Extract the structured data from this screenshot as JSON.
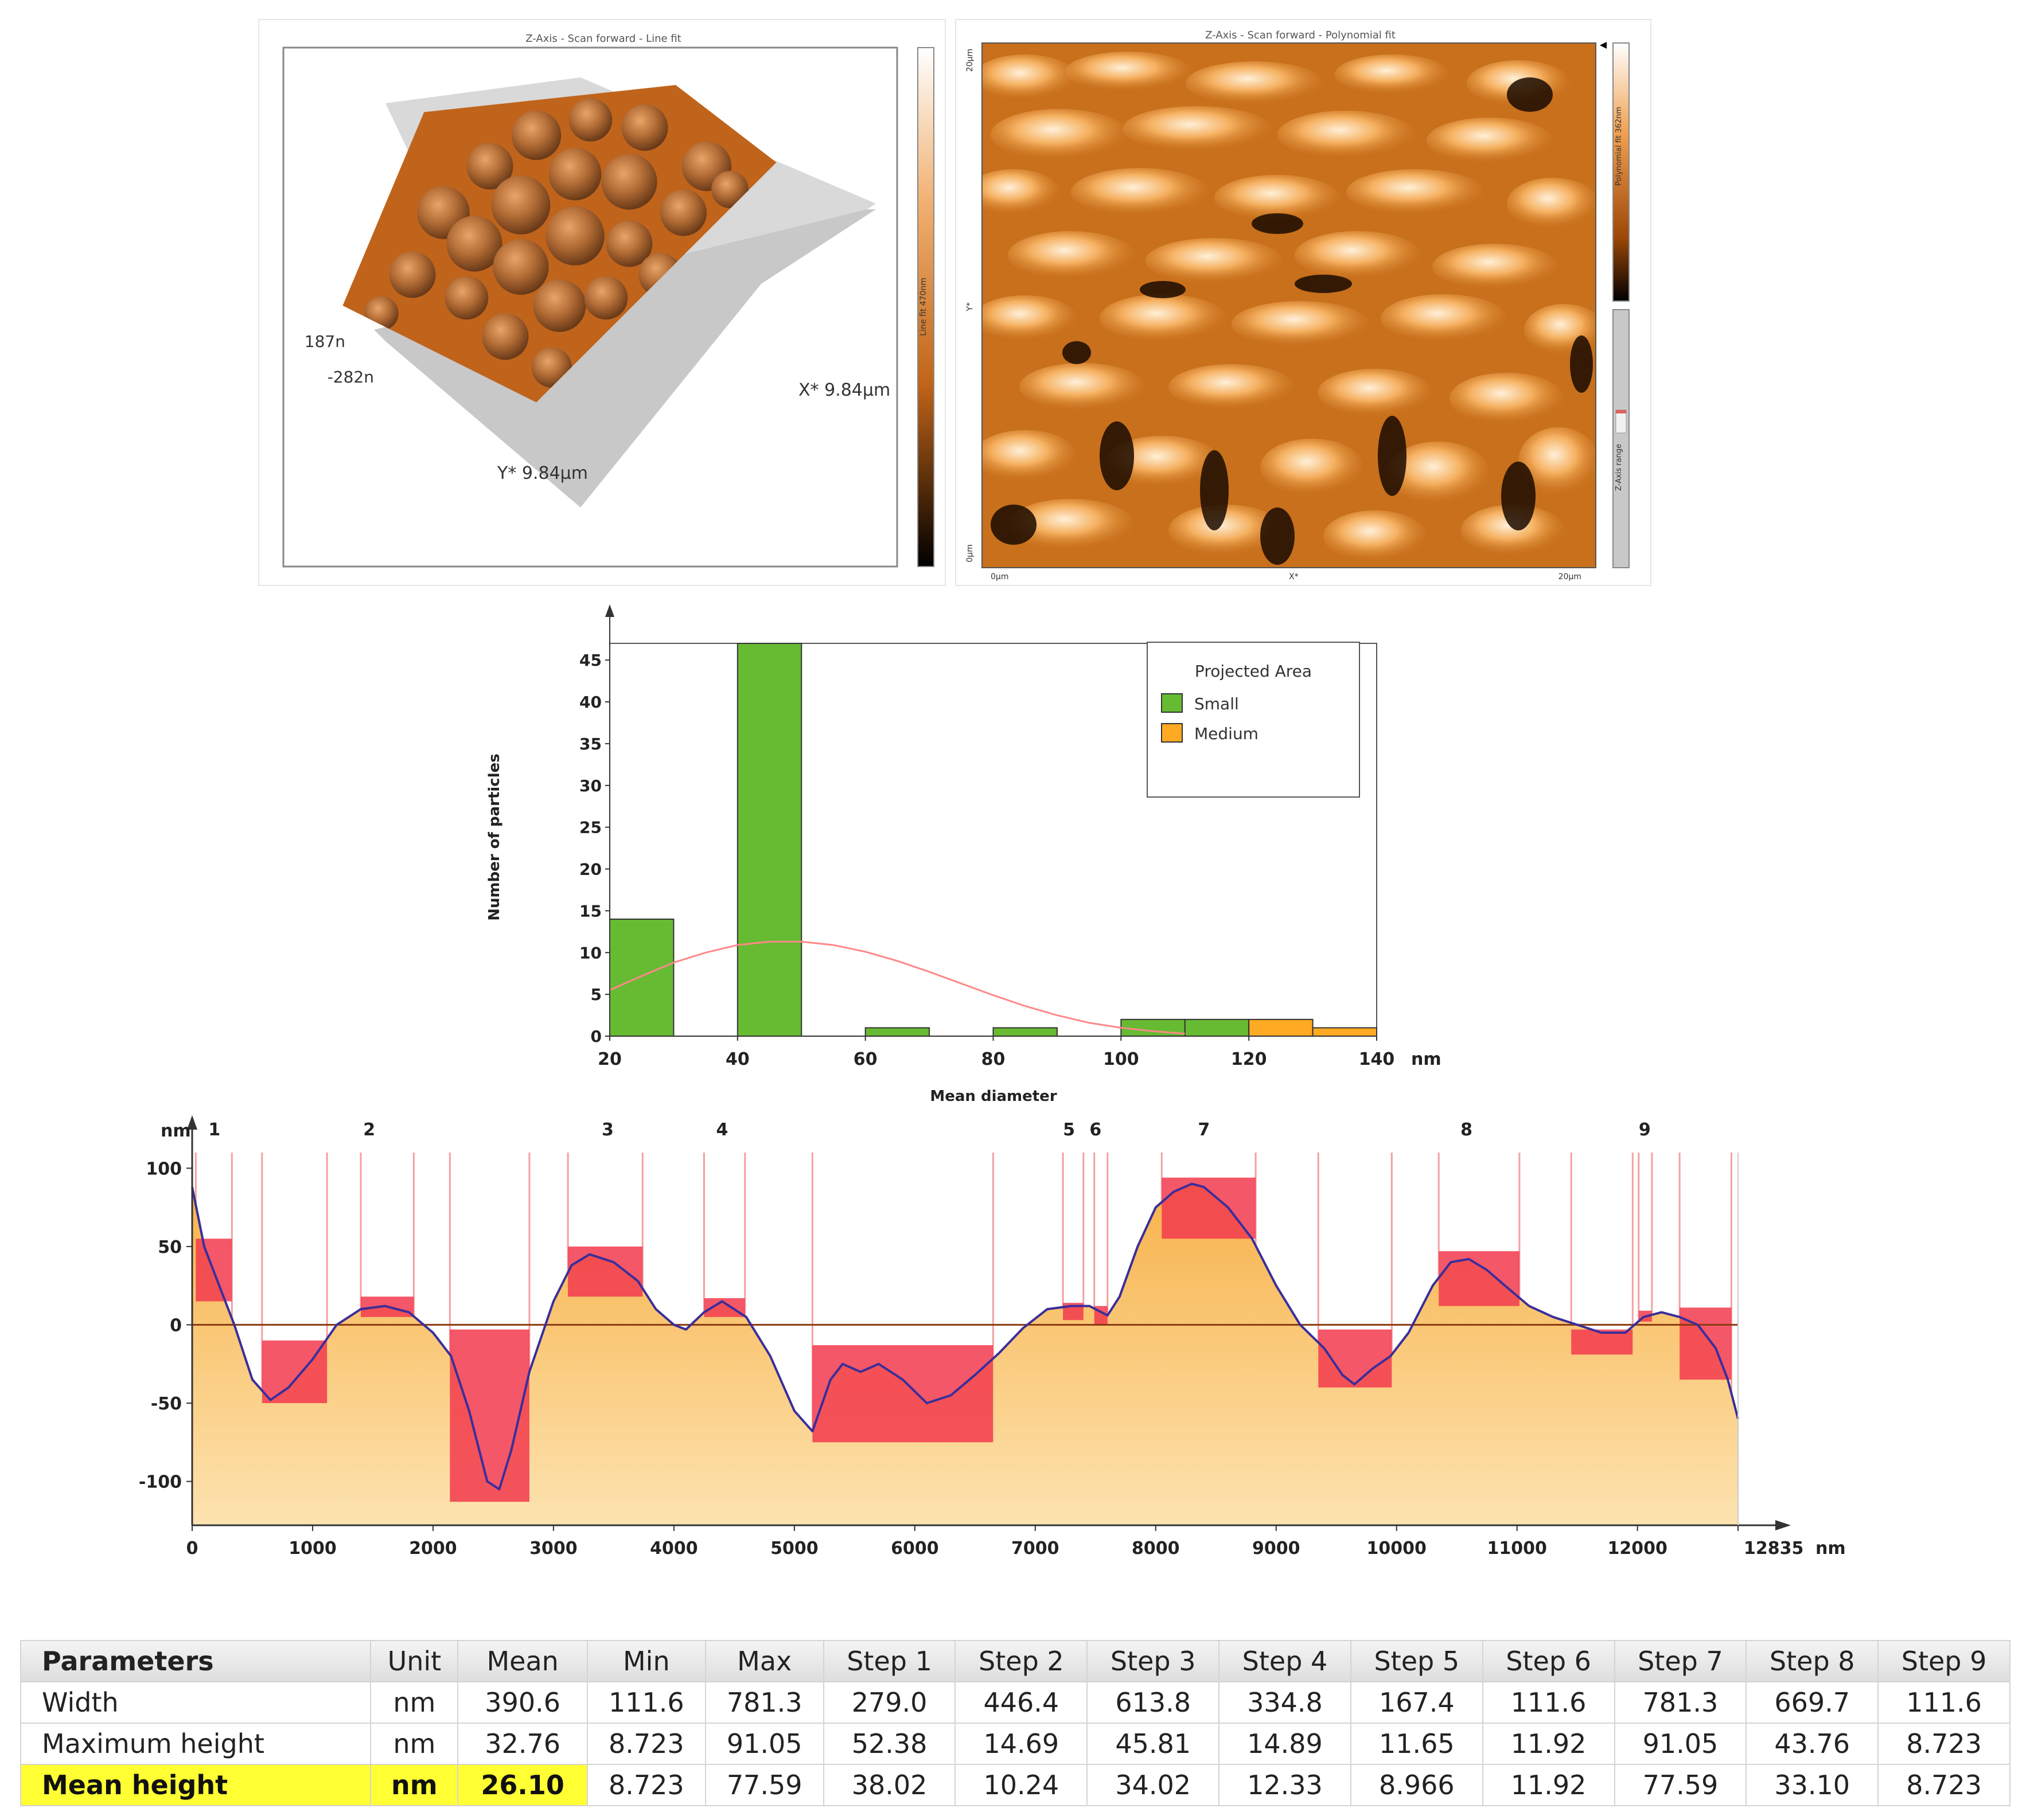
{
  "afm_3d": {
    "title": "Z-Axis - Scan forward - Line fit",
    "z_top_label": "187n",
    "z_bottom_label": "-282n",
    "x_label": "X* 9.84µm",
    "y_label": "Y* 9.84µm",
    "colorbar_label": "Line fit 470nm"
  },
  "afm_2d": {
    "title": "Z-Axis - Scan forward - Polynomial fit",
    "y_top": "20µm",
    "y_mid": "Y*",
    "y_bottom": "0µm",
    "x_left": "0µm",
    "x_mid": "X*",
    "x_right": "20µm",
    "colorbar_label": "Polynomial fit 362nm",
    "range_label": "Z-Axis range"
  },
  "chart_data": [
    {
      "type": "bar",
      "ylabel": "Number of particles",
      "xlabel": "Mean diameter",
      "x_unit": "nm",
      "xlim": [
        20,
        140
      ],
      "ylim": [
        0,
        47
      ],
      "x_ticks": [
        20,
        40,
        60,
        80,
        100,
        120,
        140
      ],
      "y_ticks": [
        0,
        5,
        10,
        15,
        20,
        25,
        30,
        35,
        40,
        45
      ],
      "legend_title": "Projected Area",
      "legend_position": "top-right",
      "series": [
        {
          "name": "Small",
          "color": "#66bb33",
          "bins": [
            [
              20,
              30,
              14
            ],
            [
              40,
              50,
              47
            ],
            [
              60,
              70,
              1
            ],
            [
              80,
              90,
              1
            ],
            [
              100,
              110,
              2
            ],
            [
              110,
              120,
              2
            ]
          ]
        },
        {
          "name": "Medium",
          "color": "#ffaa22",
          "bins": [
            [
              120,
              130,
              2
            ],
            [
              130,
              140,
              1
            ]
          ]
        }
      ],
      "fit_curve": {
        "x": [
          20,
          25,
          30,
          35,
          40,
          45,
          50,
          55,
          60,
          65,
          70,
          75,
          80,
          85,
          90,
          95,
          100,
          105,
          110
        ],
        "y": [
          5.5,
          7.2,
          8.8,
          10.0,
          10.9,
          11.3,
          11.3,
          10.9,
          10.1,
          9.0,
          7.7,
          6.3,
          4.9,
          3.6,
          2.5,
          1.6,
          1.0,
          0.6,
          0.3
        ],
        "color": "#ff8888"
      }
    },
    {
      "type": "line",
      "ylabel": "nm",
      "x_unit": "nm",
      "xlim": [
        0,
        12835
      ],
      "ylim": [
        -128,
        110
      ],
      "x_ticks": [
        0,
        1000,
        2000,
        3000,
        4000,
        5000,
        6000,
        7000,
        8000,
        9000,
        10000,
        11000,
        12000,
        12835
      ],
      "y_ticks": [
        -100,
        -50,
        0,
        50,
        100
      ],
      "profile": {
        "x": [
          0,
          100,
          200,
          350,
          500,
          650,
          800,
          1000,
          1200,
          1400,
          1600,
          1800,
          2000,
          2150,
          2300,
          2450,
          2550,
          2650,
          2800,
          3000,
          3150,
          3300,
          3500,
          3700,
          3850,
          4000,
          4100,
          4250,
          4400,
          4600,
          4800,
          5000,
          5150,
          5300,
          5400,
          5550,
          5700,
          5900,
          6100,
          6300,
          6500,
          6700,
          6900,
          7100,
          7300,
          7450,
          7600,
          7700,
          7850,
          8000,
          8150,
          8300,
          8400,
          8600,
          8800,
          9000,
          9200,
          9400,
          9550,
          9650,
          9800,
          9950,
          10100,
          10300,
          10450,
          10600,
          10750,
          10900,
          11100,
          11300,
          11500,
          11700,
          11900,
          12050,
          12200,
          12350,
          12500,
          12650,
          12750,
          12835
        ],
        "y": [
          88,
          50,
          30,
          0,
          -35,
          -48,
          -40,
          -22,
          0,
          10,
          12,
          8,
          -5,
          -20,
          -55,
          -100,
          -105,
          -80,
          -30,
          15,
          38,
          45,
          40,
          28,
          10,
          0,
          -3,
          8,
          15,
          5,
          -20,
          -55,
          -68,
          -35,
          -25,
          -30,
          -25,
          -35,
          -50,
          -45,
          -32,
          -18,
          -2,
          10,
          12,
          12,
          6,
          18,
          50,
          75,
          85,
          90,
          88,
          75,
          55,
          25,
          0,
          -15,
          -32,
          -38,
          -28,
          -20,
          -5,
          25,
          40,
          42,
          35,
          25,
          12,
          5,
          0,
          -5,
          -5,
          5,
          8,
          5,
          0,
          -15,
          -35,
          -60
        ]
      },
      "step_numbers": [
        "1",
        "2",
        "3",
        "4",
        "5",
        "6",
        "7",
        "8",
        "9"
      ],
      "steps": [
        {
          "label": "1",
          "x1": 30,
          "x2": 330,
          "low": 15,
          "high": 55
        },
        {
          "label": "2",
          "x1": 1400,
          "x2": 1840,
          "low": 5,
          "high": 18
        },
        {
          "label": "3",
          "x1": 3120,
          "x2": 3740,
          "low": 18,
          "high": 50
        },
        {
          "label": "4",
          "x1": 4250,
          "x2": 4590,
          "low": 5,
          "high": 17
        },
        {
          "label": "5",
          "x1": 7230,
          "x2": 7400,
          "low": 3,
          "high": 14
        },
        {
          "label": "6",
          "x1": 7490,
          "x2": 7600,
          "low": 0,
          "high": 12
        },
        {
          "label": "7",
          "x1": 8050,
          "x2": 8830,
          "low": 55,
          "high": 94
        },
        {
          "label": "8",
          "x1": 10350,
          "x2": 11020,
          "low": 12,
          "high": 47
        },
        {
          "label": "9",
          "x1": 12010,
          "x2": 12120,
          "low": 2,
          "high": 9
        }
      ],
      "negative_regions": [
        {
          "x1": 580,
          "x2": 1120,
          "low": -50,
          "high": -10
        },
        {
          "x1": 2140,
          "x2": 2800,
          "low": -113,
          "high": -3
        },
        {
          "x1": 5150,
          "x2": 6650,
          "low": -75,
          "high": -13
        },
        {
          "x1": 9350,
          "x2": 9960,
          "low": -40,
          "high": -3
        },
        {
          "x1": 11450,
          "x2": 11960,
          "low": -19,
          "high": -3
        },
        {
          "x1": 12350,
          "x2": 12780,
          "low": -35,
          "high": 11
        }
      ]
    }
  ],
  "table": {
    "headers": [
      "Parameters",
      "Unit",
      "Mean",
      "Min",
      "Max",
      "Step 1",
      "Step 2",
      "Step 3",
      "Step 4",
      "Step 5",
      "Step 6",
      "Step 7",
      "Step 8",
      "Step 9"
    ],
    "rows": [
      [
        "Width",
        "nm",
        "390.6",
        "111.6",
        "781.3",
        "279.0",
        "446.4",
        "613.8",
        "334.8",
        "167.4",
        "111.6",
        "781.3",
        "669.7",
        "111.6"
      ],
      [
        "Maximum height",
        "nm",
        "32.76",
        "8.723",
        "91.05",
        "52.38",
        "14.69",
        "45.81",
        "14.89",
        "11.65",
        "11.92",
        "91.05",
        "43.76",
        "8.723"
      ],
      [
        "Mean height",
        "nm",
        "26.10",
        "8.723",
        "77.59",
        "38.02",
        "10.24",
        "34.02",
        "12.33",
        "8.966",
        "11.92",
        "77.59",
        "33.10",
        "8.723"
      ]
    ]
  }
}
